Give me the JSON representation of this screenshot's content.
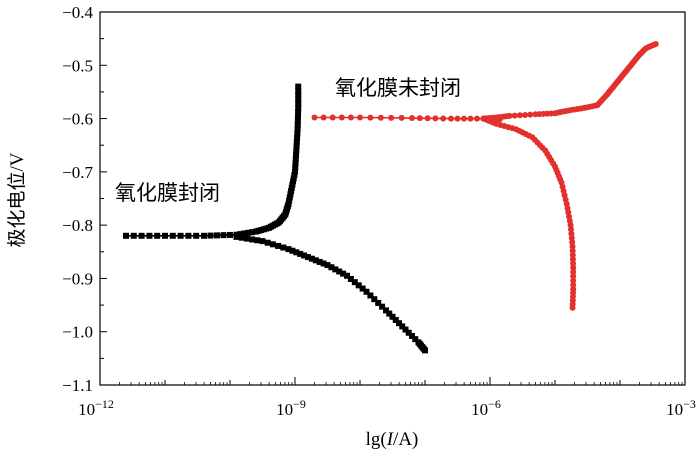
{
  "chart_data": {
    "type": "line",
    "title": "",
    "xlabel": "lg(I/A)",
    "xlabel_parts": {
      "prefix": "lg(",
      "italic": "I",
      "suffix": "/A)"
    },
    "ylabel": "极化电位/V",
    "x_scale": "log10",
    "xlim_exp": [
      -12,
      -3
    ],
    "ylim": [
      -1.1,
      -0.4
    ],
    "x_ticks": [
      {
        "exp": -12,
        "base": "10",
        "sup": "−12"
      },
      {
        "exp": -9,
        "base": "10",
        "sup": "−9"
      },
      {
        "exp": -6,
        "base": "10",
        "sup": "−6"
      },
      {
        "exp": -3,
        "base": "10",
        "sup": "−3"
      }
    ],
    "y_ticks": [
      {
        "value": -1.1,
        "label": "−1.1"
      },
      {
        "value": -1.0,
        "label": "−1.0"
      },
      {
        "value": -0.9,
        "label": "−0.9"
      },
      {
        "value": -0.8,
        "label": "−0.8"
      },
      {
        "value": -0.7,
        "label": "−0.7"
      },
      {
        "value": -0.6,
        "label": "−0.6"
      },
      {
        "value": -0.5,
        "label": "−0.5"
      },
      {
        "value": -0.4,
        "label": "−0.4"
      }
    ],
    "annotations": [
      {
        "text": "氧化膜封闭",
        "series": "sealed"
      },
      {
        "text": "氧化膜未封闭",
        "series": "unsealed"
      }
    ],
    "series": [
      {
        "id": "sealed",
        "name": "氧化膜封闭",
        "color": "#000000",
        "marker": "square",
        "branches": [
          {
            "name": "anodic",
            "points": [
              [
                -11.6,
                -0.82
              ],
              [
                -11.0,
                -0.82
              ],
              [
                -10.4,
                -0.82
              ],
              [
                -9.9,
                -0.818
              ],
              [
                -9.6,
                -0.812
              ],
              [
                -9.4,
                -0.805
              ],
              [
                -9.25,
                -0.795
              ],
              [
                -9.15,
                -0.78
              ],
              [
                -9.1,
                -0.76
              ],
              [
                -9.05,
                -0.73
              ],
              [
                -9.0,
                -0.7
              ],
              [
                -8.98,
                -0.66
              ],
              [
                -8.96,
                -0.62
              ],
              [
                -8.95,
                -0.58
              ],
              [
                -8.95,
                -0.54
              ]
            ]
          },
          {
            "name": "cathodic",
            "points": [
              [
                -9.9,
                -0.822
              ],
              [
                -9.5,
                -0.83
              ],
              [
                -9.1,
                -0.845
              ],
              [
                -8.8,
                -0.86
              ],
              [
                -8.5,
                -0.875
              ],
              [
                -8.2,
                -0.895
              ],
              [
                -7.9,
                -0.925
              ],
              [
                -7.6,
                -0.96
              ],
              [
                -7.35,
                -0.99
              ],
              [
                -7.1,
                -1.02
              ],
              [
                -7.0,
                -1.035
              ]
            ]
          }
        ]
      },
      {
        "id": "unsealed",
        "name": "氧化膜未封闭",
        "color": "#e3302c",
        "marker": "circle",
        "branches": [
          {
            "name": "plateau",
            "points": [
              [
                -8.7,
                -0.598
              ],
              [
                -8.0,
                -0.598
              ],
              [
                -7.2,
                -0.599
              ],
              [
                -6.6,
                -0.6
              ],
              [
                -6.1,
                -0.6
              ],
              [
                -5.85,
                -0.601
              ]
            ]
          },
          {
            "name": "anodic",
            "points": [
              [
                -6.1,
                -0.6
              ],
              [
                -5.9,
                -0.598
              ],
              [
                -5.7,
                -0.595
              ],
              [
                -5.3,
                -0.592
              ],
              [
                -5.0,
                -0.59
              ],
              [
                -4.8,
                -0.585
              ],
              [
                -4.55,
                -0.58
              ],
              [
                -4.35,
                -0.575
              ],
              [
                -4.2,
                -0.555
              ],
              [
                -4.1,
                -0.54
              ],
              [
                -4.0,
                -0.525
              ],
              [
                -3.9,
                -0.51
              ],
              [
                -3.8,
                -0.495
              ],
              [
                -3.7,
                -0.48
              ],
              [
                -3.6,
                -0.468
              ],
              [
                -3.45,
                -0.46
              ]
            ]
          },
          {
            "name": "cathodic",
            "points": [
              [
                -6.1,
                -0.6
              ],
              [
                -5.9,
                -0.61
              ],
              [
                -5.6,
                -0.62
              ],
              [
                -5.35,
                -0.635
              ],
              [
                -5.15,
                -0.66
              ],
              [
                -5.0,
                -0.69
              ],
              [
                -4.9,
                -0.72
              ],
              [
                -4.82,
                -0.76
              ],
              [
                -4.76,
                -0.8
              ],
              [
                -4.73,
                -0.84
              ],
              [
                -4.72,
                -0.88
              ],
              [
                -4.72,
                -0.92
              ],
              [
                -4.73,
                -0.955
              ]
            ]
          }
        ]
      }
    ]
  }
}
